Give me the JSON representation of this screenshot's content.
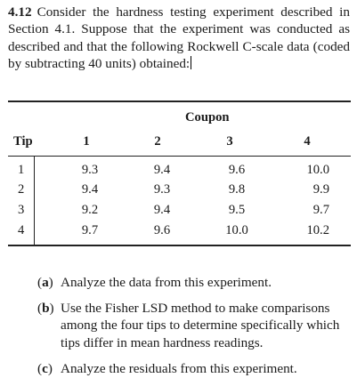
{
  "problem": {
    "number": "4.12",
    "text": "Consider the hardness testing experiment described in Section 4.1. Suppose that the experiment was conducted as described and that the following Rockwell C-scale data (coded by subtracting 40 units) obtained:"
  },
  "table": {
    "group_header": "Coupon",
    "row_header": "Tip",
    "columns": [
      "1",
      "2",
      "3",
      "4"
    ],
    "rows": [
      {
        "tip": "1",
        "values": [
          "9.3",
          "9.4",
          "9.6",
          "10.0"
        ]
      },
      {
        "tip": "2",
        "values": [
          "9.4",
          "9.3",
          "9.8",
          "9.9"
        ]
      },
      {
        "tip": "3",
        "values": [
          "9.2",
          "9.4",
          "9.5",
          "9.7"
        ]
      },
      {
        "tip": "4",
        "values": [
          "9.7",
          "9.6",
          "10.0",
          "10.2"
        ]
      }
    ]
  },
  "parts": [
    {
      "label": "a",
      "text": "Analyze the data from this experiment."
    },
    {
      "label": "b",
      "text": "Use the Fisher LSD method to make comparisons among the four tips to determine specifically which tips differ in mean hardness readings."
    },
    {
      "label": "c",
      "text": "Analyze the residuals from this experiment."
    }
  ]
}
